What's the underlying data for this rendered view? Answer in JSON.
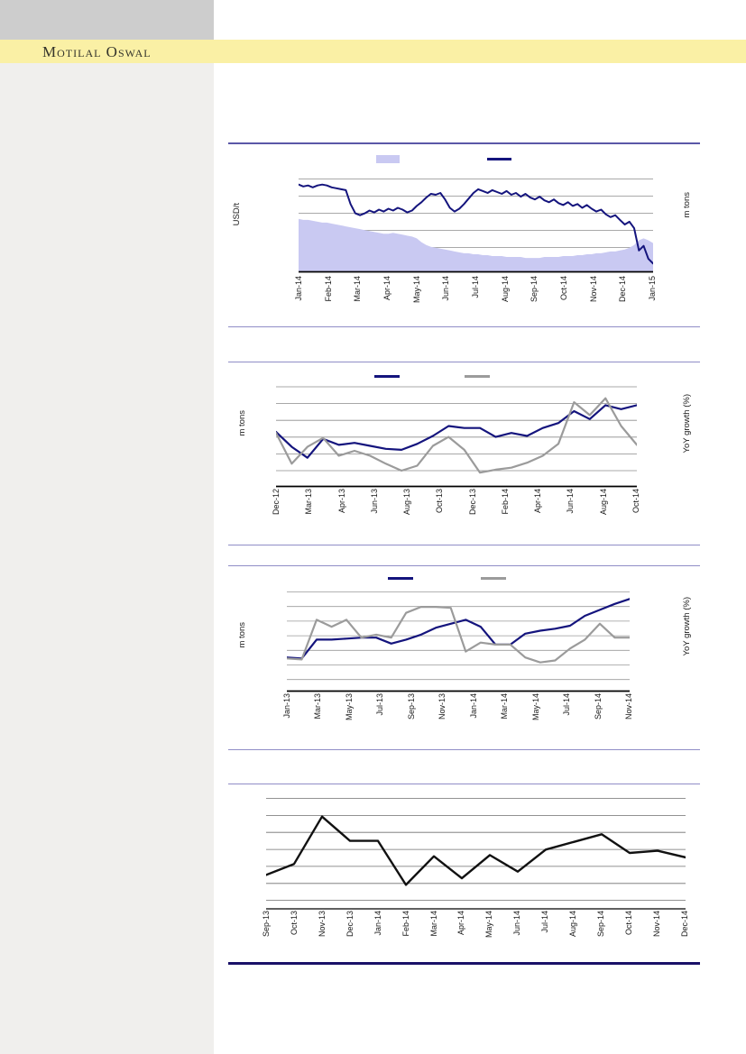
{
  "brand": {
    "logo_text": "Motilal Oswal"
  },
  "colors": {
    "brand_band": "#faf0a5",
    "header_gray_block": "#cdcdcd",
    "sidebar_gray": "#f0efed",
    "accent_rule_purple": "#5a57a7",
    "thin_rule_purple": "#908dc7",
    "final_rule_navy": "#1a1168",
    "navy_series": "#14147d",
    "lavender_area": "#c9c9f2",
    "gray_series": "#9b9b9b",
    "black_series": "#111111"
  },
  "chart_data": [
    {
      "type": "area+line",
      "title": "",
      "ylabel_left": "USD/t",
      "ylabel_right": "m tons",
      "x_tick_labels": [
        "Jan-14",
        "Feb-14",
        "Mar-14",
        "Apr-14",
        "May-14",
        "Jun-14",
        "Jul-14",
        "Aug-14",
        "Sep-14",
        "Oct-14",
        "Nov-14",
        "Dec-14",
        "Jan-15"
      ],
      "y_tick_labels_visible": false,
      "grid": true,
      "legend_position": "top",
      "legend": [
        {
          "label": "",
          "swatch": "area",
          "color": "#c9c9f2"
        },
        {
          "label": "",
          "swatch": "line",
          "color": "#14147d"
        }
      ],
      "value_scale": "percent of plot height (numeric axis values not printed on chart)",
      "ylim": [
        0,
        100
      ],
      "series": [
        {
          "name": "inventory-area",
          "type": "area",
          "axis": "right",
          "color": "#c9c9f2",
          "values": [
            56,
            55,
            55,
            54,
            53,
            52,
            52,
            51,
            50,
            49,
            48,
            47,
            46,
            45,
            44,
            43,
            42,
            41,
            40,
            40,
            41,
            40,
            39,
            38,
            37,
            35,
            31,
            28,
            26,
            25,
            24,
            23,
            22,
            21,
            20,
            19,
            19,
            18,
            18,
            17,
            17,
            16,
            16,
            16,
            15,
            15,
            15,
            15,
            14,
            14,
            14,
            14,
            15,
            15,
            15,
            15,
            16,
            16,
            16,
            17,
            17,
            18,
            18,
            19,
            19,
            20,
            21,
            21,
            22,
            23,
            25,
            28,
            33,
            35,
            33,
            30
          ]
        },
        {
          "name": "price-line",
          "type": "line",
          "axis": "left",
          "color": "#14147d",
          "width": 2,
          "values": [
            93,
            91,
            92,
            90,
            92,
            93,
            92,
            90,
            89,
            88,
            87,
            72,
            62,
            60,
            62,
            65,
            63,
            66,
            64,
            67,
            65,
            68,
            66,
            63,
            65,
            70,
            74,
            79,
            83,
            82,
            84,
            77,
            68,
            64,
            67,
            72,
            78,
            84,
            88,
            86,
            84,
            87,
            85,
            83,
            86,
            82,
            84,
            80,
            83,
            79,
            77,
            80,
            76,
            74,
            77,
            73,
            71,
            74,
            70,
            72,
            68,
            71,
            67,
            64,
            66,
            61,
            58,
            60,
            55,
            50,
            53,
            46,
            22,
            27,
            13,
            8
          ]
        }
      ]
    },
    {
      "type": "line",
      "title": "",
      "ylabel_left": "m tons",
      "ylabel_right": "YoY growth (%)",
      "x_tick_labels": [
        "Dec-12",
        "Mar-13",
        "Apr-13",
        "Jun-13",
        "Aug-13",
        "Oct-13",
        "Dec-13",
        "Feb-14",
        "Apr-14",
        "Jun-14",
        "Aug-14",
        "Oct-14"
      ],
      "y_tick_labels_visible": false,
      "grid": true,
      "legend_position": "top",
      "legend": [
        {
          "label": "",
          "swatch": "line",
          "color": "#14147d"
        },
        {
          "label": "",
          "swatch": "line",
          "color": "#9b9b9b"
        }
      ],
      "value_scale": "percent of plot height (numeric axis values not printed on chart)",
      "ylim": [
        0,
        100
      ],
      "series": [
        {
          "name": "navy-line",
          "type": "line",
          "color": "#14147d",
          "width": 2.2,
          "values": [
            54,
            39,
            28,
            47,
            41,
            43,
            40,
            37,
            36,
            42,
            50,
            60,
            58,
            58,
            49,
            53,
            50,
            58,
            63,
            75,
            67,
            81,
            77,
            81
          ]
        },
        {
          "name": "gray-line",
          "type": "line",
          "color": "#9b9b9b",
          "width": 2.2,
          "values": [
            53,
            22,
            39,
            48,
            30,
            35,
            30,
            22,
            15,
            20,
            40,
            49,
            36,
            13,
            16,
            18,
            23,
            30,
            42,
            84,
            71,
            88,
            60,
            41
          ]
        }
      ]
    },
    {
      "type": "line",
      "title": "",
      "ylabel_left": "m tons",
      "ylabel_right": "YoY growth (%)",
      "x_tick_labels": [
        "Jan-13",
        "Mar-13",
        "May-13",
        "Jul-13",
        "Sep-13",
        "Nov-13",
        "Jan-14",
        "Mar-14",
        "May-14",
        "Jul-14",
        "Sep-14",
        "Nov-14"
      ],
      "y_tick_labels_visible": false,
      "grid": true,
      "legend_position": "top",
      "legend": [
        {
          "label": "",
          "swatch": "line",
          "color": "#14147d"
        },
        {
          "label": "",
          "swatch": "line",
          "color": "#9b9b9b"
        }
      ],
      "value_scale": "percent of plot height (numeric axis values not printed on chart)",
      "ylim": [
        0,
        100
      ],
      "series": [
        {
          "name": "navy-line",
          "type": "line",
          "color": "#14147d",
          "width": 2.2,
          "values": [
            33,
            32,
            51,
            51,
            52,
            53,
            53,
            47,
            51,
            56,
            63,
            67,
            71,
            64,
            46,
            46,
            57,
            60,
            62,
            65,
            75,
            81,
            87,
            92
          ]
        },
        {
          "name": "gray-line",
          "type": "line",
          "color": "#9b9b9b",
          "width": 2.2,
          "values": [
            32,
            31,
            71,
            64,
            71,
            53,
            56,
            53,
            78,
            84,
            84,
            83,
            39,
            48,
            46,
            46,
            33,
            28,
            30,
            42,
            51,
            67,
            53,
            53
          ]
        }
      ]
    },
    {
      "type": "line",
      "title": "",
      "ylabel_left": "",
      "ylabel_right": "",
      "x_tick_labels": [
        "Sep-13",
        "Oct-13",
        "Nov-13",
        "Dec-13",
        "Jan-14",
        "Feb-14",
        "Mar-14",
        "Apr-14",
        "May-14",
        "Jun-14",
        "Jul-14",
        "Aug-14",
        "Sep-14",
        "Oct-14",
        "Nov-14",
        "Dec-14"
      ],
      "y_tick_labels_visible": false,
      "grid": true,
      "legend": [],
      "value_scale": "percent of plot height (numeric axis values not printed on chart)",
      "ylim": [
        0,
        100
      ],
      "series": [
        {
          "name": "black-line",
          "type": "line",
          "color": "#111111",
          "width": 2.4,
          "values": [
            30,
            40,
            83,
            61,
            61,
            21,
            47,
            27,
            48,
            33,
            53,
            60,
            67,
            50,
            52,
            46
          ]
        }
      ]
    }
  ]
}
